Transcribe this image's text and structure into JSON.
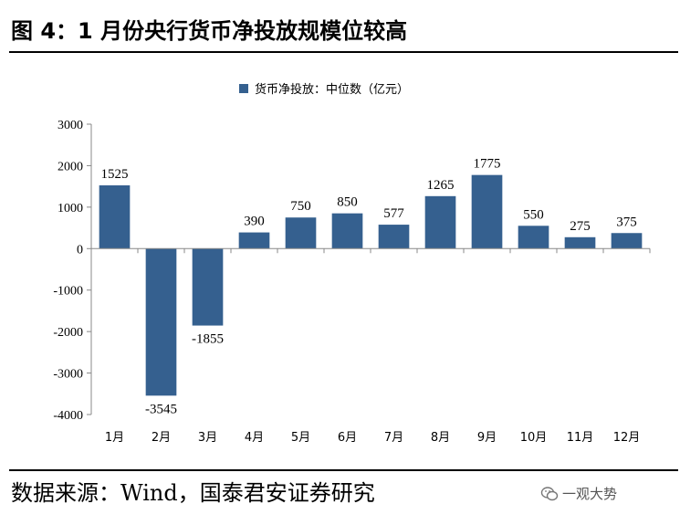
{
  "header": {
    "title": "图 4：1 月份央行货币净投放规模位较高"
  },
  "footer": {
    "source": "数据来源：Wind，国泰君安证券研究",
    "watermark": "一观大势"
  },
  "colors": {
    "bar": "#35608f",
    "axis": "#888888"
  },
  "chart_data": {
    "type": "bar",
    "categories": [
      "1月",
      "2月",
      "3月",
      "4月",
      "5月",
      "6月",
      "7月",
      "8月",
      "9月",
      "10月",
      "11月",
      "12月"
    ],
    "series": [
      {
        "name": "货币净投放：中位数（亿元）",
        "values": [
          1525,
          -3545,
          -1855,
          390,
          750,
          850,
          577,
          1265,
          1775,
          550,
          275,
          375
        ]
      }
    ],
    "ylim": [
      -4000,
      3000
    ],
    "yticks": [
      3000,
      2000,
      1000,
      0,
      -1000,
      -2000,
      -3000,
      -4000
    ],
    "legend": "top-center",
    "grid": false,
    "xlabel": "",
    "ylabel": ""
  }
}
